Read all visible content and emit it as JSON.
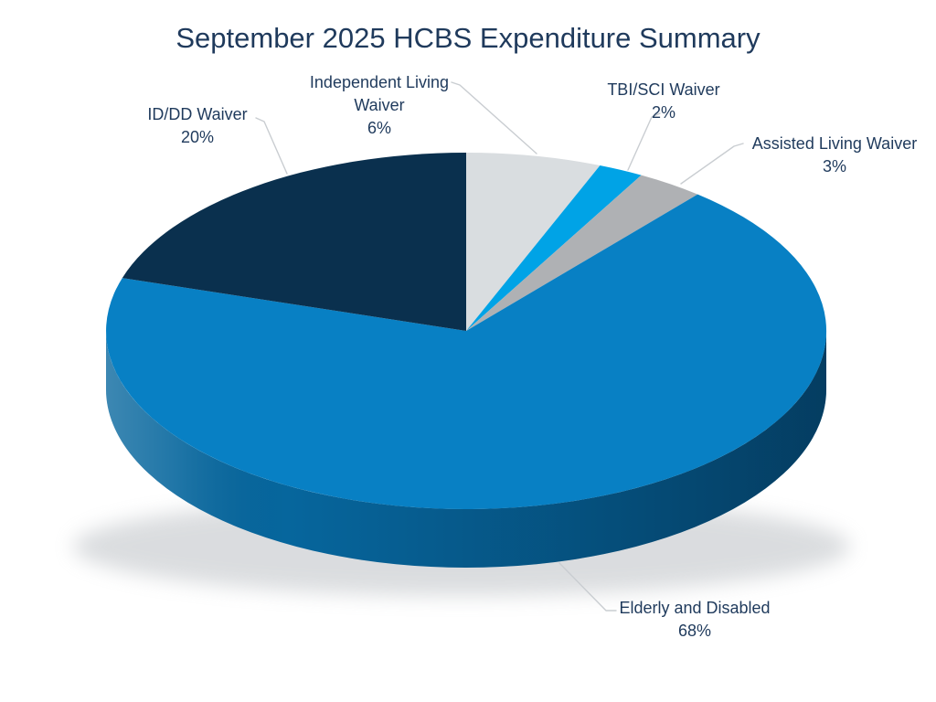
{
  "page": {
    "background": "#FFFFFF"
  },
  "title": {
    "text": "September 2025 HCBS Expenditure Summary",
    "color": "#1F3A5C"
  },
  "chart_data": {
    "type": "pie",
    "style": "3d",
    "title": "September 2025 HCBS Expenditure Summary",
    "unit": "percent",
    "direction": "clockwise",
    "start_angle_deg": 0,
    "legend": "none",
    "label_style": "outside-with-leader-lines",
    "text_color": "#1F3A5C",
    "leader_line_color": "#C9CDD1",
    "slices": [
      {
        "label": "Independent Living Waiver",
        "value": 6,
        "value_label": "6%",
        "color": "#D9DDE0"
      },
      {
        "label": "TBI/SCI Waiver",
        "value": 2,
        "value_label": "2%",
        "color": "#00A3E6"
      },
      {
        "label": "Assisted Living Waiver",
        "value": 3,
        "value_label": "3%",
        "color": "#AFB1B4"
      },
      {
        "label": "Elderly and Disabled",
        "value": 68,
        "value_label": "68%",
        "color": "#0880C4"
      },
      {
        "label": "ID/DD Waiver",
        "value": 20,
        "value_label": "20%",
        "color": "#0A304E"
      }
    ]
  }
}
